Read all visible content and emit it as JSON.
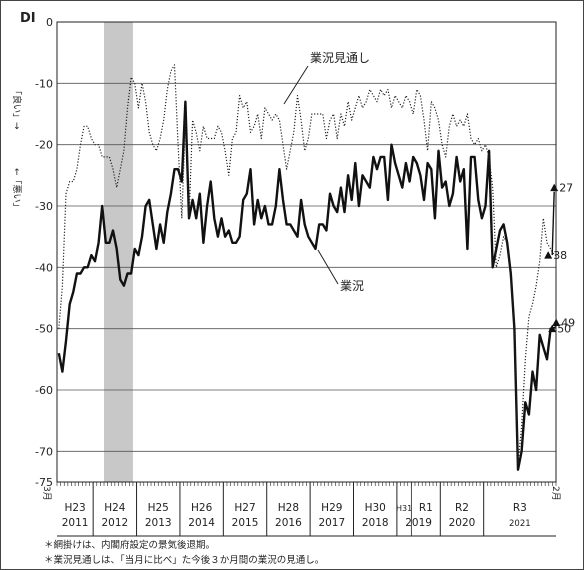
{
  "chart_data": {
    "type": "line",
    "ylabel": "DI",
    "yaxis_side_label_top": "「良い」→",
    "yaxis_side_label_bottom": "←「悪い」",
    "ylim": [
      -75,
      0
    ],
    "yticks": [
      0,
      -10,
      -20,
      -30,
      -40,
      -50,
      -60,
      -70,
      -75
    ],
    "ytick_labels": [
      "0",
      "-10",
      "-20",
      "-30",
      "-40",
      "-50",
      "-60",
      "-70",
      "-75"
    ],
    "grid": true,
    "start_month_label": "3月",
    "end_month_label": "2月",
    "year_labels": [
      {
        "era": "H23",
        "year": "2011"
      },
      {
        "era": "H24",
        "year": "2012"
      },
      {
        "era": "H25",
        "year": "2013"
      },
      {
        "era": "H26",
        "year": "2014"
      },
      {
        "era": "H27",
        "year": "2015"
      },
      {
        "era": "H28",
        "year": "2016"
      },
      {
        "era": "H29",
        "year": "2017"
      },
      {
        "era": "H30",
        "year": "2018"
      },
      {
        "era": "H31",
        "year": ""
      },
      {
        "era": "R1",
        "year": "2019"
      },
      {
        "era": "R2",
        "year": "2020"
      },
      {
        "era": "R3",
        "year": "2021"
      }
    ],
    "shaded_period": {
      "from": "2012-04",
      "to": "2012-11",
      "color": "#c8c8c8"
    },
    "series": [
      {
        "name": "業況",
        "style": "solid",
        "color": "#111111",
        "values": [
          -54,
          -57,
          -52,
          -46,
          -44,
          -41,
          -41,
          -40,
          -40,
          -38,
          -39,
          -36,
          -30,
          -36,
          -36,
          -34,
          -37,
          -42,
          -43,
          -41,
          -41,
          -37,
          -38,
          -35,
          -30,
          -29,
          -33,
          -37,
          -33,
          -36,
          -31,
          -28,
          -24,
          -24,
          -26,
          -13,
          -32,
          -29,
          -32,
          -28,
          -36,
          -30,
          -26,
          -32,
          -35,
          -32,
          -35,
          -34,
          -36,
          -36,
          -35,
          -29,
          -28,
          -24,
          -33,
          -29,
          -32,
          -30,
          -33,
          -33,
          -30,
          -24,
          -29,
          -33,
          -33,
          -34,
          -35,
          -29,
          -33,
          -35,
          -36,
          -37,
          -33,
          -33,
          -34,
          -28,
          -30,
          -31,
          -27,
          -31,
          -25,
          -29,
          -23,
          -30,
          -25,
          -26,
          -27,
          -22,
          -24,
          -22,
          -22,
          -29,
          -20,
          -23,
          -25,
          -27,
          -23,
          -26,
          -22,
          -23,
          -25,
          -29,
          -23,
          -24,
          -32,
          -21,
          -27,
          -26,
          -30,
          -28,
          -22,
          -26,
          -24,
          -37,
          -22,
          -22,
          -29,
          -32,
          -30,
          -21,
          -40,
          -37,
          -34,
          -33,
          -36,
          -41,
          -50,
          -73,
          -70,
          -62,
          -64,
          -57,
          -60,
          -51,
          -53,
          -55,
          -50,
          -50
        ]
      },
      {
        "name": "業況見通し",
        "style": "dotted",
        "color": "#222222",
        "values": [
          -50,
          -43,
          -28,
          -26,
          -26,
          -24,
          -20,
          -17,
          -17,
          -19,
          -20,
          -20,
          -22,
          -22,
          -22,
          -24,
          -27,
          -24,
          -21,
          -14,
          -9,
          -10,
          -14,
          -10,
          -13,
          -18,
          -20,
          -21,
          -19,
          -16,
          -11,
          -8,
          -7,
          -20,
          -32,
          -16,
          -32,
          -16,
          -18,
          -21,
          -17,
          -19,
          -19,
          -19,
          -17,
          -18,
          -21,
          -25,
          -19,
          -18,
          -12,
          -14,
          -13,
          -18,
          -17,
          -15,
          -19,
          -14,
          -15,
          -16,
          -15,
          -16,
          -20,
          -24,
          -21,
          -18,
          -12,
          -16,
          -21,
          -19,
          -15,
          -15,
          -15,
          -15,
          -19,
          -16,
          -15,
          -19,
          -15,
          -17,
          -13,
          -16,
          -14,
          -12,
          -14,
          -13,
          -11,
          -12,
          -13,
          -11,
          -12,
          -11,
          -14,
          -12,
          -13,
          -14,
          -12,
          -13,
          -15,
          -11,
          -12,
          -16,
          -21,
          -13,
          -14,
          -16,
          -20,
          -22,
          -17,
          -15,
          -17,
          -16,
          -17,
          -15,
          -19,
          -20,
          -19,
          -21,
          -20,
          -22,
          -27,
          -40,
          -38,
          -35,
          -36,
          -42,
          -50,
          -72,
          -66,
          -55,
          -48,
          -46,
          -43,
          -39,
          -32,
          -36,
          -37,
          -38,
          -38
        ]
      }
    ],
    "annotations": [
      {
        "text": "業況見通し",
        "for": "業況見通し"
      },
      {
        "text": "業況",
        "for": "業況"
      },
      {
        "text": "27",
        "value": -27,
        "series": "業況見通し",
        "marker": "triangle-up"
      },
      {
        "text": "38",
        "value": -38,
        "series": "業況見通し",
        "marker": "triangle-up"
      },
      {
        "text": "49",
        "value": -49,
        "series": "業況",
        "marker": "triangle-up"
      },
      {
        "text": "50",
        "value": -50,
        "series": "業況",
        "marker": "triangle-up"
      }
    ]
  },
  "notes": [
    "＊網掛けは、内閣府設定の景気後退期。",
    "＊業況見通しは、「当月に比べ」た今後３か月間の業況の見通し。"
  ]
}
